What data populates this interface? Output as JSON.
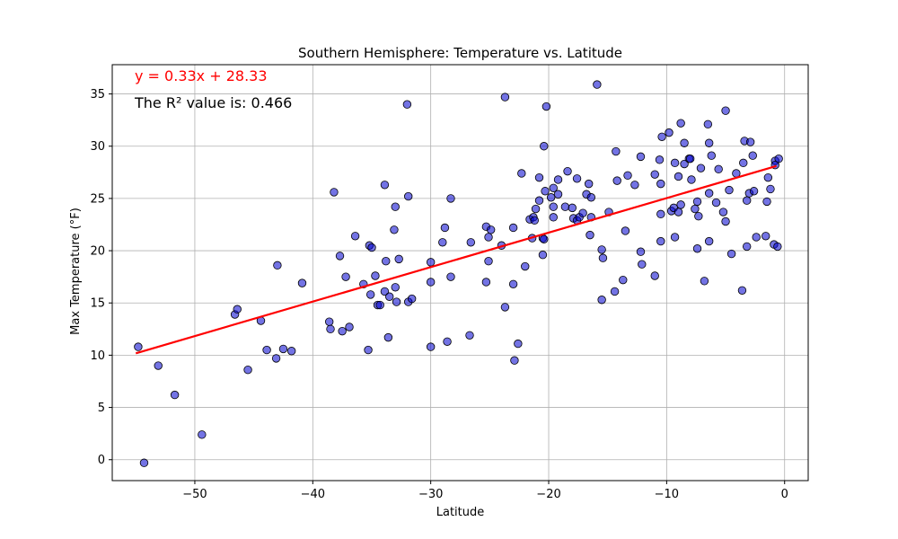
{
  "chart_data": {
    "type": "scatter",
    "title": "Southern Hemisphere: Temperature vs. Latitude",
    "xlabel": "Latitude",
    "ylabel": "Max Temperature (°F)",
    "xlim": [
      -57,
      2
    ],
    "ylim": [
      -2,
      37.8
    ],
    "x_ticks": [
      -50,
      -40,
      -30,
      -20,
      -10,
      0
    ],
    "y_ticks": [
      0,
      5,
      10,
      15,
      20,
      25,
      30,
      35
    ],
    "grid": true,
    "point_color": "#0000cd",
    "point_edge_color": "#000000",
    "regression": {
      "slope": 0.33,
      "intercept": 28.33,
      "x_range": [
        -55,
        -0.7
      ],
      "color": "#ff0000",
      "equation_text": "y = 0.33x + 28.33",
      "r2_text": "The R² value is: 0.466"
    },
    "points": [
      [
        -54.8,
        10.8
      ],
      [
        -54.3,
        -0.3
      ],
      [
        -53.1,
        9.0
      ],
      [
        -51.7,
        6.2
      ],
      [
        -49.4,
        2.4
      ],
      [
        -46.6,
        13.9
      ],
      [
        -46.4,
        14.4
      ],
      [
        -45.5,
        8.6
      ],
      [
        -44.4,
        13.3
      ],
      [
        -43.9,
        10.5
      ],
      [
        -43.1,
        9.7
      ],
      [
        -43.0,
        18.6
      ],
      [
        -42.5,
        10.6
      ],
      [
        -41.8,
        10.4
      ],
      [
        -40.9,
        16.9
      ],
      [
        -38.6,
        13.2
      ],
      [
        -38.5,
        12.5
      ],
      [
        -38.2,
        25.6
      ],
      [
        -37.7,
        19.5
      ],
      [
        -37.5,
        12.3
      ],
      [
        -37.2,
        17.5
      ],
      [
        -36.9,
        12.7
      ],
      [
        -36.4,
        21.4
      ],
      [
        -35.7,
        16.8
      ],
      [
        -35.3,
        10.5
      ],
      [
        -35.2,
        20.5
      ],
      [
        -35.0,
        20.3
      ],
      [
        -35.1,
        15.8
      ],
      [
        -34.7,
        17.6
      ],
      [
        -34.5,
        14.8
      ],
      [
        -34.3,
        14.8
      ],
      [
        -33.9,
        26.3
      ],
      [
        -33.8,
        19.0
      ],
      [
        -33.9,
        16.1
      ],
      [
        -33.6,
        11.7
      ],
      [
        -33.5,
        15.6
      ],
      [
        -33.1,
        22.0
      ],
      [
        -33.0,
        24.2
      ],
      [
        -33.0,
        16.5
      ],
      [
        -32.9,
        15.1
      ],
      [
        -32.7,
        19.2
      ],
      [
        -32.0,
        34.0
      ],
      [
        -31.9,
        25.2
      ],
      [
        -31.9,
        15.1
      ],
      [
        -31.6,
        15.4
      ],
      [
        -30.0,
        18.9
      ],
      [
        -30.0,
        17.0
      ],
      [
        -30.0,
        10.8
      ],
      [
        -29.0,
        20.8
      ],
      [
        -28.8,
        22.2
      ],
      [
        -28.6,
        11.3
      ],
      [
        -28.3,
        25.0
      ],
      [
        -28.3,
        17.5
      ],
      [
        -26.6,
        20.8
      ],
      [
        -26.7,
        11.9
      ],
      [
        -25.3,
        22.3
      ],
      [
        -25.3,
        17.0
      ],
      [
        -25.1,
        19.0
      ],
      [
        -25.1,
        21.3
      ],
      [
        -24.9,
        22.0
      ],
      [
        -24.0,
        20.5
      ],
      [
        -23.7,
        14.6
      ],
      [
        -23.7,
        34.7
      ],
      [
        -23.0,
        22.2
      ],
      [
        -23.0,
        16.8
      ],
      [
        -22.9,
        9.5
      ],
      [
        -22.6,
        11.1
      ],
      [
        -22.3,
        27.4
      ],
      [
        -22.0,
        18.5
      ],
      [
        -21.6,
        23.0
      ],
      [
        -21.4,
        21.2
      ],
      [
        -21.3,
        23.2
      ],
      [
        -21.2,
        22.9
      ],
      [
        -21.1,
        24.0
      ],
      [
        -20.8,
        24.8
      ],
      [
        -20.8,
        27.0
      ],
      [
        -20.5,
        21.2
      ],
      [
        -20.5,
        19.6
      ],
      [
        -20.4,
        30.0
      ],
      [
        -20.3,
        25.7
      ],
      [
        -20.4,
        21.1
      ],
      [
        -20.2,
        33.8
      ],
      [
        -19.8,
        25.1
      ],
      [
        -19.6,
        24.2
      ],
      [
        -19.6,
        26.0
      ],
      [
        -19.6,
        23.2
      ],
      [
        -19.2,
        25.4
      ],
      [
        -19.2,
        26.8
      ],
      [
        -18.6,
        24.2
      ],
      [
        -18.4,
        27.6
      ],
      [
        -18.0,
        24.1
      ],
      [
        -17.9,
        23.1
      ],
      [
        -17.6,
        22.9
      ],
      [
        -17.6,
        26.9
      ],
      [
        -17.4,
        23.2
      ],
      [
        -17.1,
        23.6
      ],
      [
        -16.8,
        25.4
      ],
      [
        -16.6,
        26.4
      ],
      [
        -16.5,
        21.5
      ],
      [
        -16.4,
        25.1
      ],
      [
        -16.4,
        23.2
      ],
      [
        -15.9,
        35.9
      ],
      [
        -15.5,
        20.1
      ],
      [
        -15.5,
        15.3
      ],
      [
        -15.4,
        19.3
      ],
      [
        -14.9,
        23.7
      ],
      [
        -14.4,
        16.1
      ],
      [
        -14.3,
        29.5
      ],
      [
        -14.2,
        26.7
      ],
      [
        -13.7,
        17.2
      ],
      [
        -13.5,
        21.9
      ],
      [
        -13.3,
        27.2
      ],
      [
        -12.7,
        26.3
      ],
      [
        -12.2,
        19.9
      ],
      [
        -12.2,
        29.0
      ],
      [
        -12.1,
        18.7
      ],
      [
        -11.0,
        27.3
      ],
      [
        -11.0,
        17.6
      ],
      [
        -10.6,
        28.7
      ],
      [
        -10.5,
        26.4
      ],
      [
        -10.5,
        23.5
      ],
      [
        -10.5,
        20.9
      ],
      [
        -10.4,
        30.9
      ],
      [
        -9.8,
        31.3
      ],
      [
        -9.6,
        23.8
      ],
      [
        -9.4,
        24.1
      ],
      [
        -9.3,
        21.3
      ],
      [
        -9.3,
        28.4
      ],
      [
        -9.0,
        27.1
      ],
      [
        -9.0,
        23.7
      ],
      [
        -8.8,
        32.2
      ],
      [
        -8.8,
        24.4
      ],
      [
        -8.5,
        30.3
      ],
      [
        -8.5,
        28.3
      ],
      [
        -8.1,
        28.8
      ],
      [
        -8.0,
        28.8
      ],
      [
        -7.9,
        26.8
      ],
      [
        -7.6,
        24.0
      ],
      [
        -7.4,
        20.2
      ],
      [
        -7.4,
        24.7
      ],
      [
        -7.3,
        23.3
      ],
      [
        -7.1,
        27.9
      ],
      [
        -6.8,
        17.1
      ],
      [
        -6.5,
        32.1
      ],
      [
        -6.4,
        30.3
      ],
      [
        -6.4,
        25.5
      ],
      [
        -6.4,
        20.9
      ],
      [
        -6.2,
        29.1
      ],
      [
        -5.8,
        24.6
      ],
      [
        -5.6,
        27.8
      ],
      [
        -5.2,
        23.7
      ],
      [
        -5.0,
        33.4
      ],
      [
        -5.0,
        22.8
      ],
      [
        -4.7,
        25.8
      ],
      [
        -4.5,
        19.7
      ],
      [
        -4.1,
        27.4
      ],
      [
        -3.6,
        16.2
      ],
      [
        -3.5,
        28.4
      ],
      [
        -3.4,
        30.5
      ],
      [
        -3.2,
        20.4
      ],
      [
        -3.2,
        24.8
      ],
      [
        -3.0,
        25.5
      ],
      [
        -2.9,
        30.4
      ],
      [
        -2.7,
        29.1
      ],
      [
        -2.6,
        25.7
      ],
      [
        -2.4,
        21.3
      ],
      [
        -1.6,
        21.4
      ],
      [
        -1.4,
        27.0
      ],
      [
        -1.5,
        24.7
      ],
      [
        -1.2,
        25.9
      ],
      [
        -0.9,
        20.6
      ],
      [
        -0.8,
        28.6
      ],
      [
        -0.8,
        28.2
      ],
      [
        -0.6,
        20.4
      ],
      [
        -0.5,
        28.8
      ]
    ]
  }
}
